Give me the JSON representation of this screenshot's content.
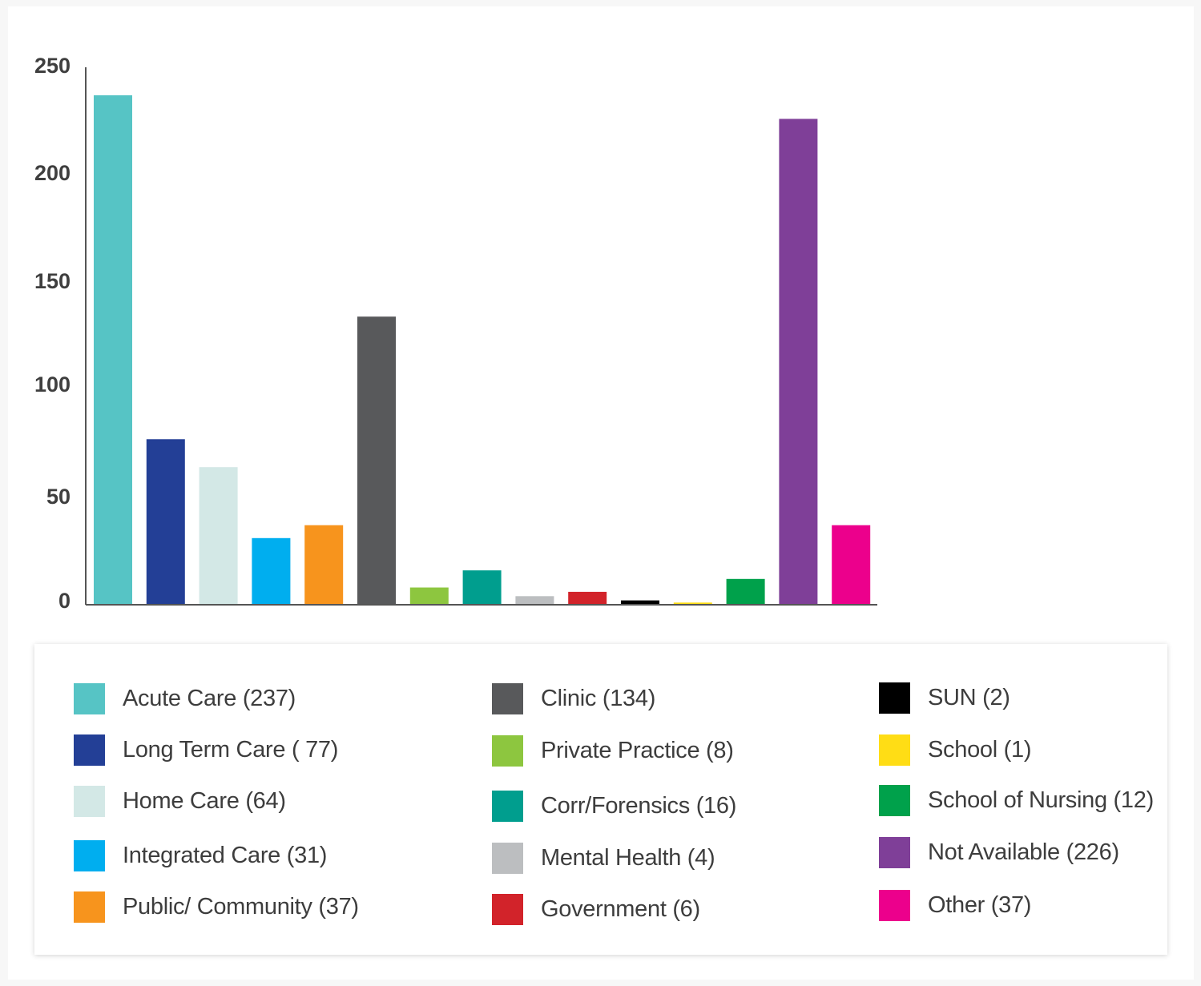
{
  "chart_data": {
    "type": "bar",
    "categories": [
      "Acute Care",
      "Long Term Care",
      "Home Care",
      "Integrated Care",
      "Public/ Community",
      "Clinic",
      "Private Practice",
      "Corr/Forensics",
      "Mental Health",
      "Government",
      "SUN",
      "School",
      "School of Nursing",
      "Not Available",
      "Other"
    ],
    "values": [
      237,
      77,
      64,
      31,
      37,
      134,
      8,
      16,
      4,
      6,
      2,
      1,
      12,
      226,
      37
    ],
    "colors": [
      "#56c4c5",
      "#233f96",
      "#d3e8e6",
      "#00aeef",
      "#f7941d",
      "#58595b",
      "#8dc63f",
      "#009e8e",
      "#bcbec0",
      "#d2232a",
      "#000000",
      "#ffdd15",
      "#00a14b",
      "#7f3f98",
      "#ec008c"
    ],
    "ylim": [
      0,
      250
    ],
    "yticks": [
      "0",
      "50",
      "100",
      "150",
      "200",
      "250"
    ],
    "grid": false,
    "legend_placement": "bottom"
  },
  "legend": {
    "items": [
      {
        "label": "Acute Care (237)",
        "color": "#56c4c5"
      },
      {
        "label": "Long Term Care ( 77)",
        "color": "#233f96"
      },
      {
        "label": "Home Care (64)",
        "color": "#d3e8e6"
      },
      {
        "label": "Integrated Care (31)",
        "color": "#00aeef"
      },
      {
        "label": "Public/ Community (37)",
        "color": "#f7941d"
      },
      {
        "label": "Clinic (134)",
        "color": "#58595b"
      },
      {
        "label": "Private Practice (8)",
        "color": "#8dc63f"
      },
      {
        "label": "Corr/Forensics (16)",
        "color": "#009e8e"
      },
      {
        "label": "Mental Health (4)",
        "color": "#bcbec0"
      },
      {
        "label": "Government (6)",
        "color": "#d2232a"
      },
      {
        "label": "SUN (2)",
        "color": "#000000"
      },
      {
        "label": "School (1)",
        "color": "#ffdd15"
      },
      {
        "label": "School of Nursing (12)",
        "color": "#00a14b"
      },
      {
        "label": "Not Available (226)",
        "color": "#7f3f98"
      },
      {
        "label": "Other (37)",
        "color": "#ec008c"
      }
    ]
  }
}
